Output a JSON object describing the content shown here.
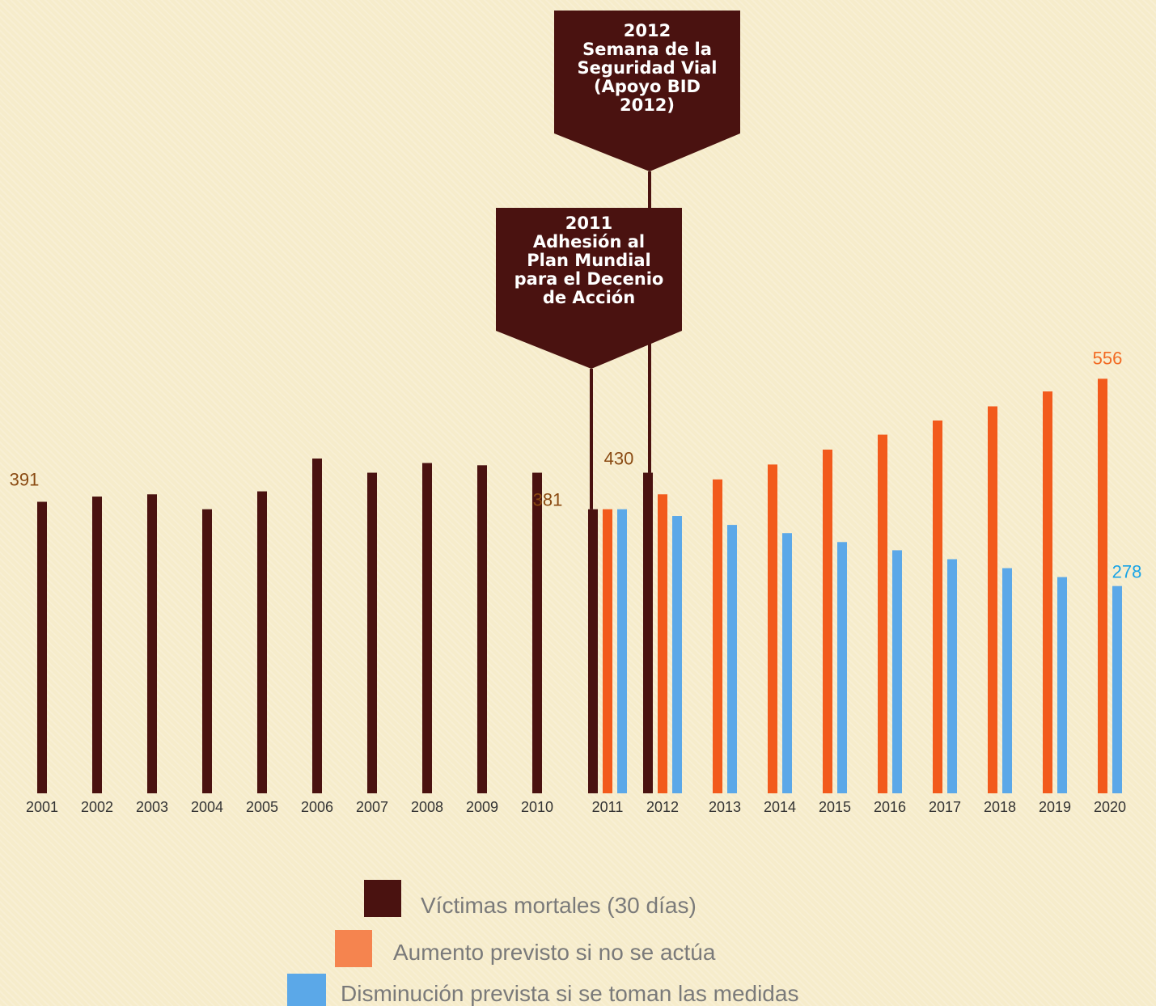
{
  "colors": {
    "victimas": "#4a1210",
    "aumento": "#f25a1c",
    "disminucion": "#5ba8e8",
    "aumento_legend": "#f5844f",
    "label_brown": "#8a4a12",
    "label_orange": "#f26a22",
    "label_blue": "#19a4e6",
    "callout_bg": "#4a1210"
  },
  "chart_data": {
    "type": "bar",
    "categories": [
      "2001",
      "2002",
      "2003",
      "2004",
      "2005",
      "2006",
      "2007",
      "2008",
      "2009",
      "2010",
      "2011",
      "2012",
      "2013",
      "2014",
      "2015",
      "2016",
      "2017",
      "2018",
      "2019",
      "2020"
    ],
    "series": [
      {
        "name": "Víctimas mortales (30 días)",
        "values": [
          391,
          398,
          401,
          381,
          405,
          449,
          430,
          443,
          440,
          430,
          381,
          430,
          null,
          null,
          null,
          null,
          null,
          null,
          null,
          null
        ]
      },
      {
        "name": "Aumento previsto si no se actúa",
        "values": [
          null,
          null,
          null,
          null,
          null,
          null,
          null,
          null,
          null,
          null,
          381,
          401,
          421,
          441,
          461,
          481,
          500,
          519,
          539,
          556
        ]
      },
      {
        "name": "Disminución prevista si se toman las medidas",
        "values": [
          null,
          null,
          null,
          null,
          null,
          null,
          null,
          null,
          null,
          null,
          381,
          372,
          360,
          349,
          337,
          326,
          314,
          302,
          290,
          278
        ]
      }
    ],
    "data_labels": [
      {
        "category": "2001",
        "series": 0,
        "text": "391"
      },
      {
        "category": "2011",
        "series": 0,
        "text": "381"
      },
      {
        "category": "2012",
        "series": 0,
        "text": "430"
      },
      {
        "category": "2020",
        "series": 1,
        "text": "556"
      },
      {
        "category": "2020",
        "series": 2,
        "text": "278"
      }
    ],
    "annotations": [
      {
        "category": "2012",
        "lines": [
          "2012",
          "Semana de la",
          "Seguridad Vial",
          "(Apoyo BID",
          "2012)"
        ]
      },
      {
        "category": "2011",
        "lines": [
          "2011",
          "Adhesión al",
          "Plan Mundial",
          "para el Decenio",
          "de Acción"
        ]
      }
    ],
    "legend": {
      "position": "bottom-center"
    },
    "grid": false,
    "ylim": [
      0,
      600
    ]
  }
}
